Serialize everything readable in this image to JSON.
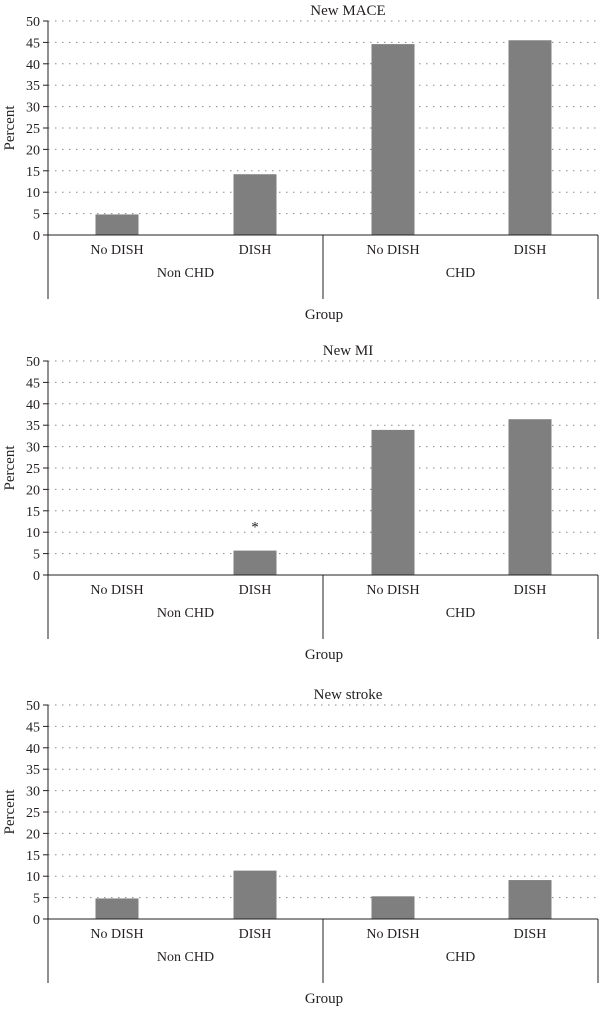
{
  "chart_data": [
    {
      "type": "bar",
      "title": "New MACE",
      "ylabel": "Percent",
      "xlabel": "Group",
      "ylim": [
        0,
        50
      ],
      "yticks": [
        0,
        5,
        10,
        15,
        20,
        25,
        30,
        35,
        40,
        45,
        50
      ],
      "grid": true,
      "bar_color": "#7f7f7f",
      "categories": [
        "No DISH",
        "DISH",
        "No DISH",
        "DISH"
      ],
      "groups": [
        "Non CHD",
        "CHD"
      ],
      "values": [
        4.8,
        14.2,
        44.6,
        45.5
      ],
      "annotations": []
    },
    {
      "type": "bar",
      "title": "New MI",
      "ylabel": "Percent",
      "xlabel": "Group",
      "ylim": [
        0,
        50
      ],
      "yticks": [
        0,
        5,
        10,
        15,
        20,
        25,
        30,
        35,
        40,
        45,
        50
      ],
      "grid": true,
      "bar_color": "#7f7f7f",
      "categories": [
        "No DISH",
        "DISH",
        "No DISH",
        "DISH"
      ],
      "groups": [
        "Non CHD",
        "CHD"
      ],
      "values": [
        0,
        5.7,
        33.9,
        36.4
      ],
      "annotations": [
        {
          "category_index": 1,
          "text": "*"
        }
      ]
    },
    {
      "type": "bar",
      "title": "New stroke",
      "ylabel": "Percent",
      "xlabel": "Group",
      "ylim": [
        0,
        50
      ],
      "yticks": [
        0,
        5,
        10,
        15,
        20,
        25,
        30,
        35,
        40,
        45,
        50
      ],
      "grid": true,
      "bar_color": "#7f7f7f",
      "categories": [
        "No DISH",
        "DISH",
        "No DISH",
        "DISH"
      ],
      "groups": [
        "Non CHD",
        "CHD"
      ],
      "values": [
        4.8,
        11.3,
        5.3,
        9.1
      ],
      "annotations": []
    }
  ]
}
